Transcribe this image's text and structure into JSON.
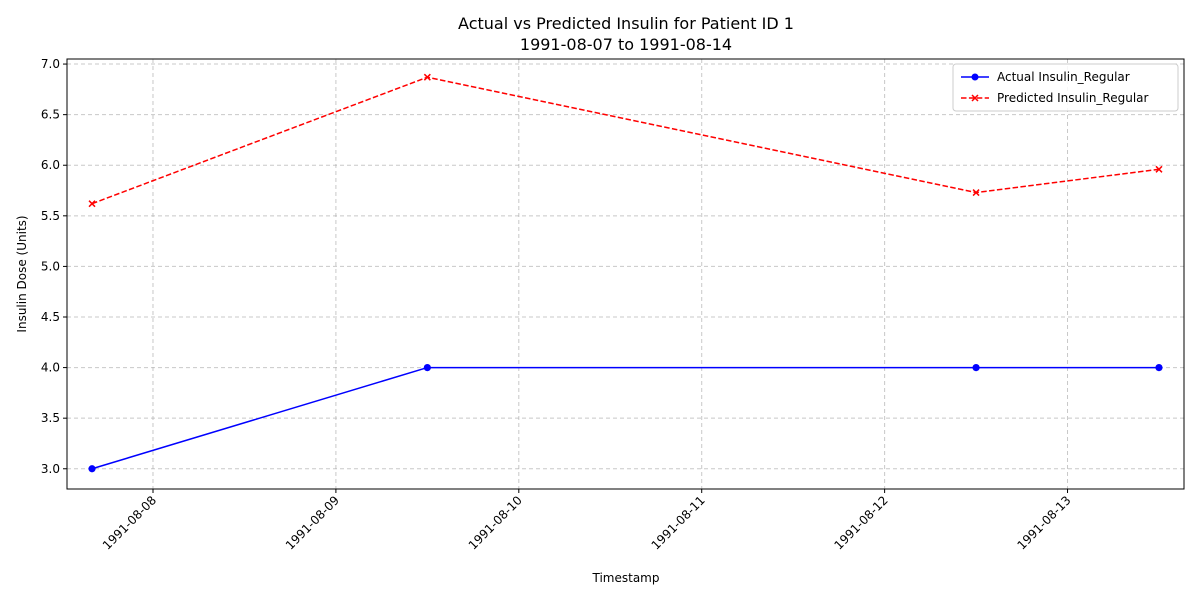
{
  "chart_data": {
    "type": "line",
    "title": "Actual vs Predicted Insulin for Patient ID 1",
    "subtitle": "1991-08-07 to 1991-08-14",
    "xlabel": "Timestamp",
    "ylabel": "Insulin Dose (Units)",
    "x_axis_type": "date",
    "x_ticks": [
      "1991-08-08",
      "1991-08-09",
      "1991-08-10",
      "1991-08-11",
      "1991-08-12",
      "1991-08-13"
    ],
    "xlim": [
      "1991-08-07 12:43",
      "1991-08-13 15:17"
    ],
    "ylim": [
      2.8,
      7.05
    ],
    "y_ticks": [
      3.0,
      3.5,
      4.0,
      4.5,
      5.0,
      5.5,
      6.0,
      6.5,
      7.0
    ],
    "grid": true,
    "legend_position": "top-right",
    "x": [
      "1991-08-07 16:00",
      "1991-08-09 12:00",
      "1991-08-12 12:00",
      "1991-08-13 12:00"
    ],
    "series": [
      {
        "name": "Actual Insulin_Regular",
        "values": [
          3.0,
          4.0,
          4.0,
          4.0
        ],
        "color": "#0000ff",
        "line_style": "solid",
        "marker": "circle"
      },
      {
        "name": "Predicted Insulin_Regular",
        "values": [
          5.62,
          6.87,
          5.73,
          5.96
        ],
        "color": "#ff0000",
        "line_style": "dashed",
        "marker": "x"
      }
    ]
  }
}
